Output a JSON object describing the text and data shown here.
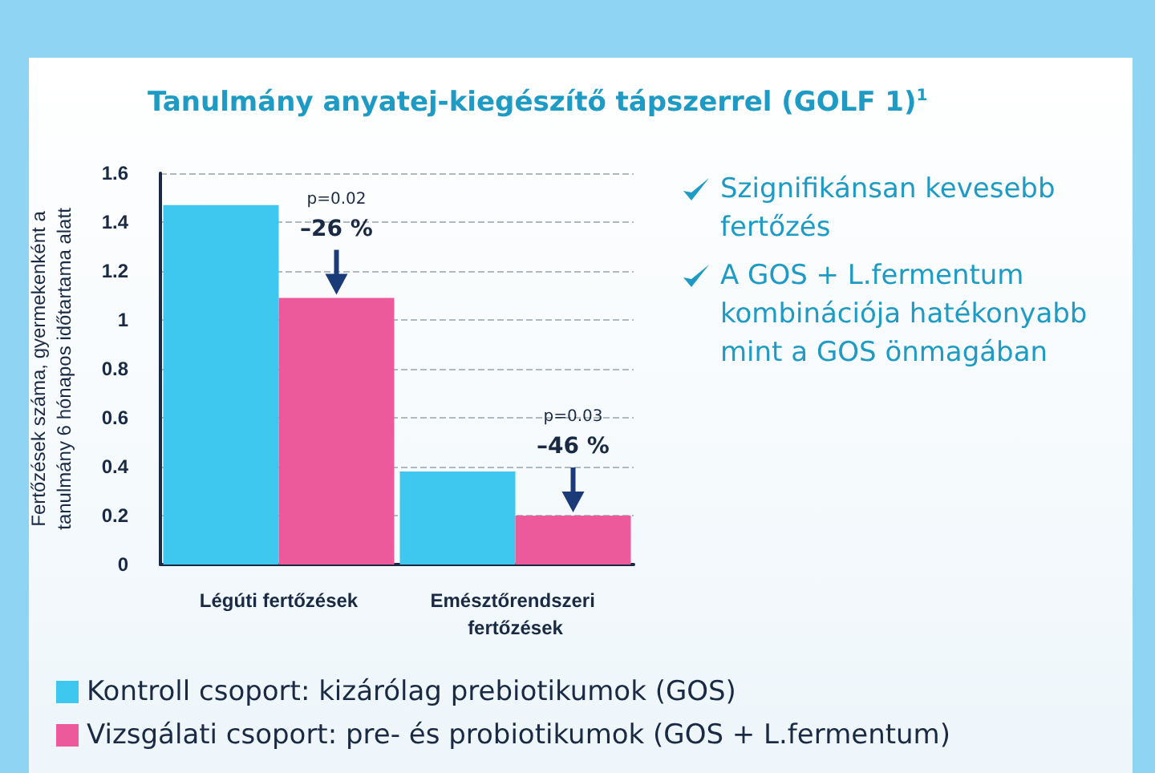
{
  "chart_data": {
    "type": "bar",
    "title": "Tanulmány anyatej-kiegészítő tápszerrel (GOLF 1)$^{1}$",
    "ylabel": "Fertőzések száma, gyermekenként a tanulmány 6 hónapos időtartama alatt",
    "categories": [
      "Légúti fertőzések",
      "Emésztőrendszeri fertőzések"
    ],
    "series": [
      {
        "name": "Kontroll csoport: kizárólag prebiotikumok (GOS)",
        "color": "#3ec8f0",
        "values": [
          1.47,
          0.38
        ]
      },
      {
        "name": "Vizsgálati csoport: pre- és probiotikumok (GOS + L.fermentum)",
        "color": "#ec5a9c",
        "values": [
          1.09,
          0.2
        ]
      }
    ],
    "ylim": [
      0,
      1.6
    ],
    "yticks": [
      0,
      0.2,
      0.4,
      0.6,
      0.8,
      1,
      1.2,
      1.4,
      1.6
    ],
    "grid": "y",
    "legend": "bottom",
    "annotations": [
      "p=0.02",
      "–26 %",
      "p=0.03",
      "–46 %",
      "Szignifikánsan kevesebb fertőzés",
      "A GOS + L.fermentum kombinációja hatékonyabb mint a GOS önmagában"
    ]
  }
}
